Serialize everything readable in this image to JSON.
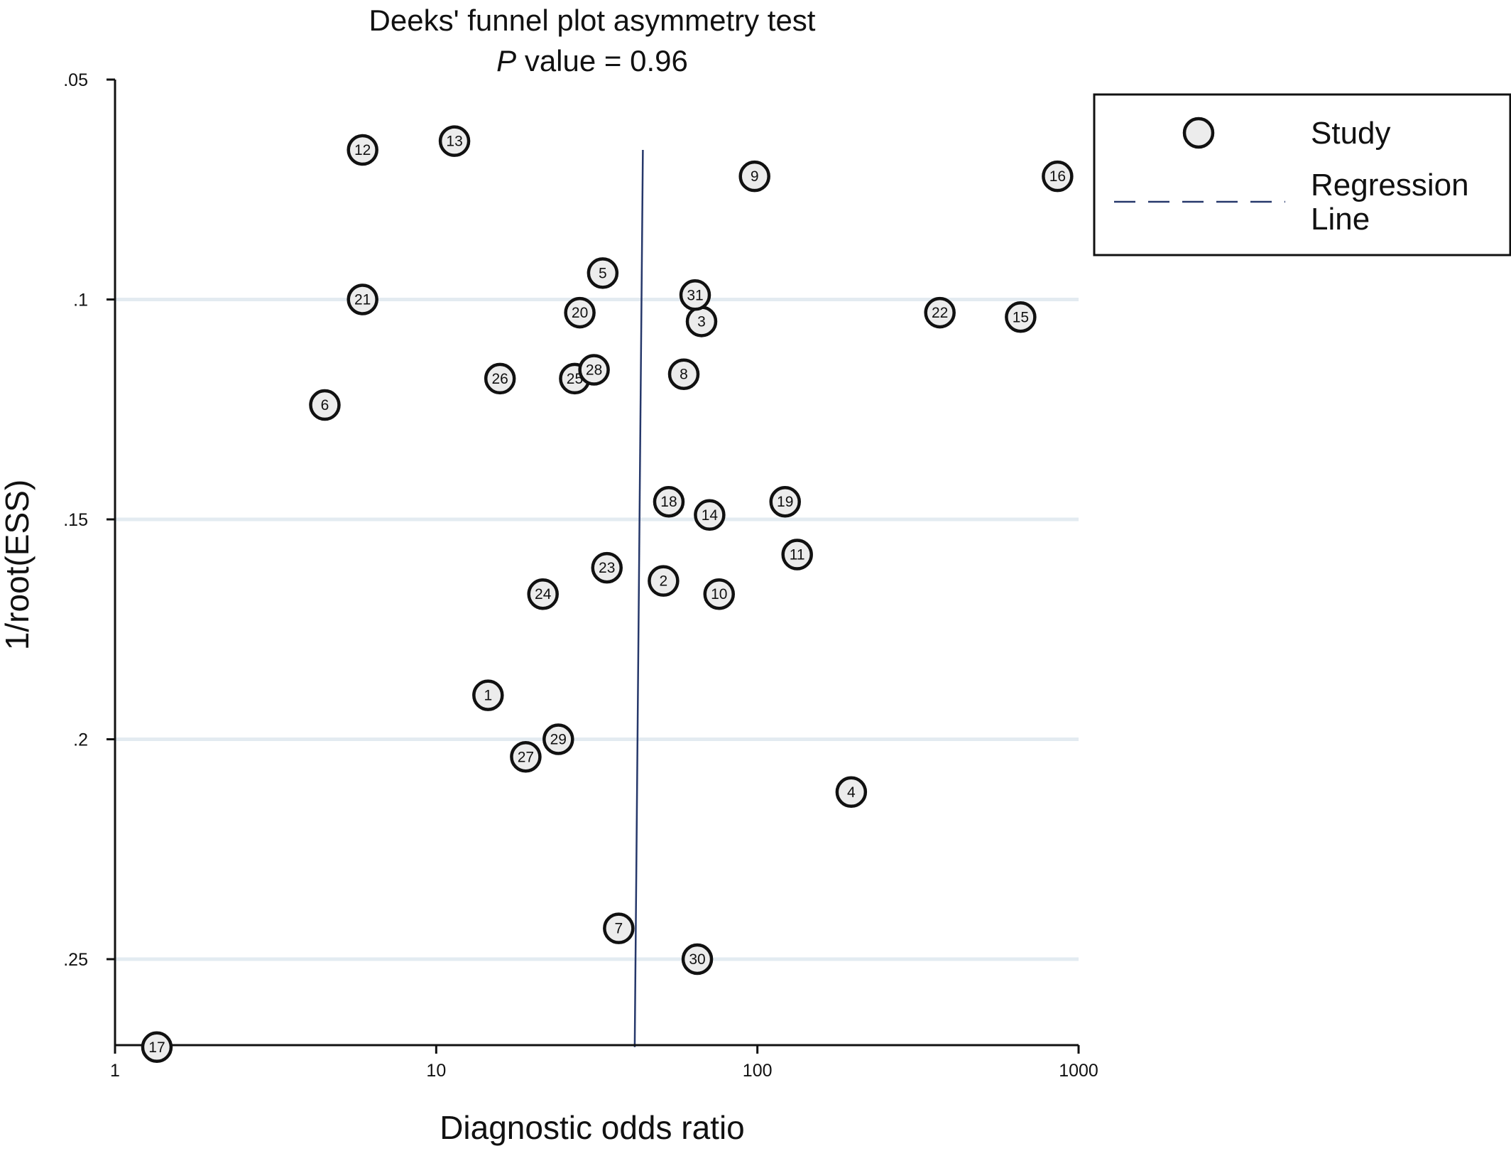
{
  "chart_data": {
    "type": "scatter",
    "title": "Deeks' funnel plot asymmetry test",
    "subtitle_prefix": "P",
    "subtitle_rest": " value = 0.96",
    "xlabel": "Diagnostic odds ratio",
    "ylabel": "1/root(ESS)",
    "x_scale": "log",
    "xlim": [
      1,
      1000
    ],
    "ylim": [
      0.05,
      0.27
    ],
    "y_axis_inverted": true,
    "grid": "horizontal",
    "x_ticks": [
      {
        "value": 1,
        "label": "1"
      },
      {
        "value": 10,
        "label": "10"
      },
      {
        "value": 100,
        "label": "100"
      },
      {
        "value": 1000,
        "label": "1000"
      }
    ],
    "y_ticks": [
      {
        "value": 0.05,
        "label": ".05"
      },
      {
        "value": 0.1,
        "label": ".1"
      },
      {
        "value": 0.15,
        "label": ".15"
      },
      {
        "value": 0.2,
        "label": ".2"
      },
      {
        "value": 0.25,
        "label": ".25"
      }
    ],
    "legend": {
      "placement": "right",
      "items": [
        {
          "label": "Study",
          "kind": "marker"
        },
        {
          "label": "Regression\nLine",
          "kind": "line"
        }
      ]
    },
    "regression_line": {
      "x": [
        44,
        41.5
      ],
      "y": [
        0.066,
        0.27
      ]
    },
    "series": [
      {
        "name": "Study",
        "points": [
          {
            "label": "1",
            "x": 14.5,
            "y": 0.19
          },
          {
            "label": "2",
            "x": 51,
            "y": 0.164
          },
          {
            "label": "3",
            "x": 67,
            "y": 0.105
          },
          {
            "label": "4",
            "x": 196,
            "y": 0.212
          },
          {
            "label": "5",
            "x": 33,
            "y": 0.094
          },
          {
            "label": "6",
            "x": 4.5,
            "y": 0.124
          },
          {
            "label": "7",
            "x": 37,
            "y": 0.243
          },
          {
            "label": "8",
            "x": 59,
            "y": 0.117
          },
          {
            "label": "9",
            "x": 98,
            "y": 0.072
          },
          {
            "label": "10",
            "x": 76,
            "y": 0.167
          },
          {
            "label": "11",
            "x": 133,
            "y": 0.158
          },
          {
            "label": "12",
            "x": 5.9,
            "y": 0.066
          },
          {
            "label": "13",
            "x": 11.4,
            "y": 0.064
          },
          {
            "label": "14",
            "x": 71,
            "y": 0.149
          },
          {
            "label": "15",
            "x": 660,
            "y": 0.104
          },
          {
            "label": "16",
            "x": 860,
            "y": 0.072
          },
          {
            "label": "17",
            "x": 1.35,
            "y": 0.27
          },
          {
            "label": "18",
            "x": 53,
            "y": 0.146
          },
          {
            "label": "19",
            "x": 122,
            "y": 0.146
          },
          {
            "label": "20",
            "x": 28,
            "y": 0.103
          },
          {
            "label": "21",
            "x": 5.9,
            "y": 0.1
          },
          {
            "label": "22",
            "x": 370,
            "y": 0.103
          },
          {
            "label": "23",
            "x": 34,
            "y": 0.161
          },
          {
            "label": "24",
            "x": 21.5,
            "y": 0.167
          },
          {
            "label": "25",
            "x": 27,
            "y": 0.118
          },
          {
            "label": "26",
            "x": 15.8,
            "y": 0.118
          },
          {
            "label": "27",
            "x": 19,
            "y": 0.204
          },
          {
            "label": "28",
            "x": 31,
            "y": 0.116
          },
          {
            "label": "29",
            "x": 24,
            "y": 0.2
          },
          {
            "label": "30",
            "x": 65,
            "y": 0.25
          },
          {
            "label": "31",
            "x": 64,
            "y": 0.099
          }
        ]
      }
    ]
  }
}
